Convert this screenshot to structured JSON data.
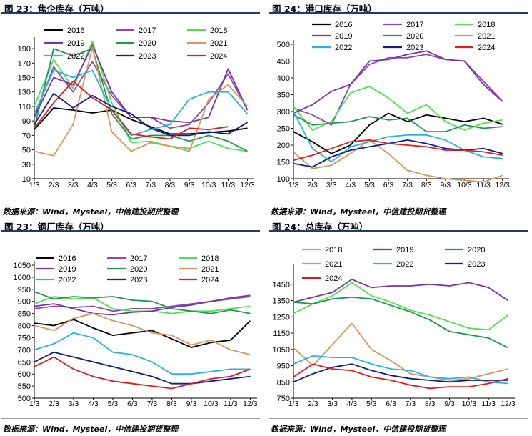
{
  "panels": [
    {
      "title": "图 23：焦企库存（万吨）",
      "source": "数据来源：Wind，Mysteel，中信建投期货整理"
    },
    {
      "title": "图 24：港口库存（万吨）",
      "source": "数据来源：Wind，Mysteel，中信建投期货整理"
    },
    {
      "title": "图 23：钢厂库存（万吨）",
      "source": "数据来源：Wind，Mysteel，中信建投期货整理"
    },
    {
      "title": "图 24：总库存（万吨）",
      "source": "数据来源：Wind，Mysteel，中信建投期货整理"
    }
  ],
  "colors": {
    "2016": "#000000",
    "2017": "#8c48b5",
    "2018": "#4fe24f",
    "2019": "#7a32a8",
    "2020": "#1e9a4e",
    "2021": "#d9965a",
    "2022": "#27b4e0",
    "2023": "#0d1f8c",
    "2024": "#e01c1c"
  },
  "chart_data": [
    {
      "type": "line",
      "title": "图 23：焦企库存（万吨）",
      "categories": [
        "1/3",
        "2/3",
        "3/3",
        "4/3",
        "5/3",
        "6/3",
        "7/3",
        "8/3",
        "9/3",
        "10/3",
        "11/3",
        "12/3"
      ],
      "ylim": [
        10,
        200
      ],
      "yticks": [
        10,
        30,
        50,
        70,
        90,
        110,
        130,
        150,
        170,
        190
      ],
      "grid": false,
      "legend": "top",
      "series": [
        {
          "name": "2016",
          "values": [
            78,
            108,
            105,
            101,
            105,
            92,
            82,
            72,
            72,
            74,
            76,
            80
          ]
        },
        {
          "name": "2017",
          "values": [
            95,
            165,
            130,
            172,
            125,
            95,
            95,
            80,
            85,
            115,
            155,
            105
          ]
        },
        {
          "name": "2018",
          "values": [
            110,
            175,
            135,
            200,
            115,
            60,
            62,
            55,
            52,
            62,
            52,
            48
          ]
        },
        {
          "name": "2019",
          "values": [
            95,
            150,
            140,
            195,
            130,
            95,
            95,
            90,
            88,
            95,
            162,
            105
          ]
        },
        {
          "name": "2020",
          "values": [
            80,
            190,
            180,
            190,
            100,
            65,
            70,
            70,
            62,
            70,
            62,
            48
          ]
        },
        {
          "name": "2021",
          "values": [
            48,
            42,
            85,
            192,
            75,
            48,
            60,
            55,
            48,
            120,
            140,
            110
          ]
        },
        {
          "name": "2022",
          "values": [
            100,
            160,
            150,
            160,
            105,
            70,
            78,
            85,
            120,
            130,
            130,
            100
          ]
        },
        {
          "name": "2023",
          "values": [
            85,
            128,
            108,
            125,
            110,
            100,
            80,
            70,
            70,
            75,
            72,
            88
          ]
        },
        {
          "name": "2024",
          "values": [
            80,
            115,
            145,
            122,
            105,
            72,
            68,
            65,
            80,
            78,
            82,
            null
          ]
        }
      ]
    },
    {
      "type": "line",
      "title": "图 24：港口库存（万吨）",
      "categories": [
        "1/3",
        "2/3",
        "3/3",
        "4/3",
        "5/3",
        "6/3",
        "7/3",
        "8/3",
        "9/3",
        "10/3",
        "11/3",
        "12/3"
      ],
      "ylim": [
        100,
        500
      ],
      "yticks": [
        100,
        150,
        200,
        250,
        300,
        350,
        400,
        450,
        500
      ],
      "grid": false,
      "legend": "top",
      "series": [
        {
          "name": "2016",
          "values": [
            240,
            210,
            175,
            200,
            260,
            295,
            270,
            290,
            280,
            270,
            280,
            262
          ]
        },
        {
          "name": "2017",
          "values": [
            310,
            290,
            260,
            380,
            440,
            460,
            460,
            470,
            455,
            450,
            390,
            330
          ]
        },
        {
          "name": "2018",
          "values": [
            315,
            245,
            270,
            355,
            375,
            340,
            295,
            320,
            270,
            245,
            265,
            275
          ]
        },
        {
          "name": "2019",
          "values": [
            295,
            320,
            360,
            380,
            450,
            455,
            470,
            480,
            455,
            450,
            380,
            330
          ]
        },
        {
          "name": "2020",
          "values": [
            290,
            260,
            265,
            270,
            285,
            275,
            280,
            240,
            240,
            260,
            250,
            255
          ]
        },
        {
          "name": "2021",
          "values": [
            180,
            130,
            140,
            175,
            215,
            175,
            125,
            110,
            100,
            95,
            90,
            110
          ]
        },
        {
          "name": "2022",
          "values": [
            300,
            190,
            150,
            195,
            210,
            225,
            230,
            230,
            215,
            185,
            165,
            160
          ]
        },
        {
          "name": "2023",
          "values": [
            145,
            135,
            165,
            185,
            195,
            205,
            215,
            205,
            190,
            185,
            190,
            175
          ]
        },
        {
          "name": "2024",
          "values": [
            155,
            170,
            190,
            210,
            215,
            205,
            200,
            195,
            185,
            185,
            180,
            170
          ]
        }
      ]
    },
    {
      "type": "line",
      "title": "图 23：钢厂库存（万吨）",
      "categories": [
        "1/3",
        "2/3",
        "3/3",
        "4/3",
        "5/3",
        "6/3",
        "7/3",
        "8/3",
        "9/3",
        "10/3",
        "11/3",
        "12/3"
      ],
      "ylim": [
        500,
        1050
      ],
      "yticks": [
        500,
        550,
        600,
        650,
        700,
        750,
        800,
        850,
        900,
        950,
        1000,
        1050
      ],
      "grid": false,
      "legend": "top",
      "series": [
        {
          "name": "2016",
          "values": [
            810,
            800,
            825,
            790,
            760,
            770,
            780,
            745,
            710,
            730,
            740,
            820
          ]
        },
        {
          "name": "2017",
          "values": [
            870,
            880,
            875,
            880,
            860,
            870,
            870,
            880,
            890,
            900,
            910,
            920
          ]
        },
        {
          "name": "2018",
          "values": [
            890,
            920,
            910,
            915,
            870,
            860,
            860,
            850,
            860,
            860,
            870,
            880
          ]
        },
        {
          "name": "2019",
          "values": [
            880,
            890,
            870,
            850,
            845,
            855,
            860,
            875,
            885,
            900,
            915,
            925
          ]
        },
        {
          "name": "2020",
          "values": [
            940,
            910,
            920,
            915,
            920,
            905,
            900,
            870,
            860,
            850,
            865,
            850
          ]
        },
        {
          "name": "2021",
          "values": [
            800,
            780,
            830,
            850,
            820,
            800,
            770,
            760,
            720,
            740,
            700,
            680
          ]
        },
        {
          "name": "2022",
          "values": [
            700,
            725,
            770,
            750,
            690,
            680,
            650,
            600,
            600,
            610,
            620,
            620
          ]
        },
        {
          "name": "2023",
          "values": [
            650,
            690,
            670,
            650,
            630,
            610,
            590,
            560,
            560,
            570,
            580,
            590
          ]
        },
        {
          "name": "2024",
          "values": [
            630,
            670,
            620,
            590,
            570,
            560,
            550,
            540,
            560,
            580,
            590,
            620
          ]
        }
      ]
    },
    {
      "type": "line",
      "title": "图 24：总库存（万吨）",
      "categories": [
        "1/3",
        "2/3",
        "3/3",
        "4/3",
        "5/3",
        "6/3",
        "7/3",
        "8/3",
        "9/3",
        "10/3",
        "11/3",
        "12/3"
      ],
      "ylim": [
        750,
        1550
      ],
      "yticks": [
        750,
        850,
        950,
        1050,
        1150,
        1250,
        1350,
        1450
      ],
      "grid": false,
      "legend": "top",
      "series": [
        {
          "name": "2018",
          "values": [
            1270,
            1330,
            1380,
            1460,
            1380,
            1340,
            1290,
            1260,
            1220,
            1180,
            1170,
            1260
          ]
        },
        {
          "name": "2019",
          "values": [
            1340,
            1370,
            1400,
            1480,
            1430,
            1440,
            1440,
            1450,
            1440,
            1460,
            1430,
            1350
          ]
        },
        {
          "name": "2020",
          "values": [
            1340,
            1330,
            1360,
            1370,
            1360,
            1320,
            1280,
            1230,
            1160,
            1140,
            1120,
            1060
          ]
        },
        {
          "name": "2021",
          "values": [
            1060,
            950,
            1080,
            1210,
            1050,
            980,
            900,
            880,
            860,
            870,
            900,
            930
          ]
        },
        {
          "name": "2022",
          "values": [
            960,
            1010,
            1000,
            1000,
            960,
            930,
            920,
            880,
            870,
            880,
            850,
            840
          ]
        },
        {
          "name": "2023",
          "values": [
            850,
            900,
            940,
            960,
            920,
            890,
            870,
            860,
            850,
            860,
            860,
            860
          ]
        },
        {
          "name": "2024",
          "values": [
            880,
            960,
            930,
            920,
            880,
            860,
            830,
            810,
            820,
            820,
            840,
            870
          ]
        }
      ]
    }
  ]
}
